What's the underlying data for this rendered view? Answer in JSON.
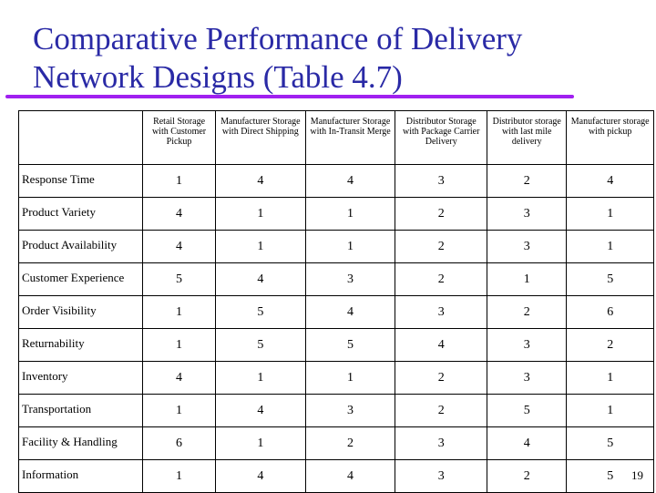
{
  "slide": {
    "title_line1": "Comparative Performance of Delivery",
    "title_line2": "Network Designs (Table 4.7)",
    "page_number": "19"
  },
  "table": {
    "headers": [
      "",
      "Retail Storage with Customer Pickup",
      "Manufacturer Storage with Direct Shipping",
      "Manufacturer Storage with In-Transit Merge",
      "Distributor Storage with Package Carrier Delivery",
      "Distributor storage with last mile delivery",
      "Manufacturer storage with pickup"
    ],
    "rows": [
      {
        "label": "Response Time",
        "values": [
          "1",
          "4",
          "4",
          "3",
          "2",
          "4"
        ]
      },
      {
        "label": "Product Variety",
        "values": [
          "4",
          "1",
          "1",
          "2",
          "3",
          "1"
        ]
      },
      {
        "label": "Product Availability",
        "values": [
          "4",
          "1",
          "1",
          "2",
          "3",
          "1"
        ]
      },
      {
        "label": "Customer Experience",
        "values": [
          "5",
          "4",
          "3",
          "2",
          "1",
          "5"
        ]
      },
      {
        "label": "Order Visibility",
        "values": [
          "1",
          "5",
          "4",
          "3",
          "2",
          "6"
        ]
      },
      {
        "label": "Returnability",
        "values": [
          "1",
          "5",
          "5",
          "4",
          "3",
          "2"
        ]
      },
      {
        "label": "Inventory",
        "values": [
          "4",
          "1",
          "1",
          "2",
          "3",
          "1"
        ]
      },
      {
        "label": "Transportation",
        "values": [
          "1",
          "4",
          "3",
          "2",
          "5",
          "1"
        ]
      },
      {
        "label": "Facility & Handling",
        "values": [
          "6",
          "1",
          "2",
          "3",
          "4",
          "5"
        ]
      },
      {
        "label": "Information",
        "values": [
          "1",
          "4",
          "4",
          "3",
          "2",
          "5"
        ]
      }
    ]
  },
  "colors": {
    "title": "#2a2aa6",
    "underline": "#a020f0"
  }
}
